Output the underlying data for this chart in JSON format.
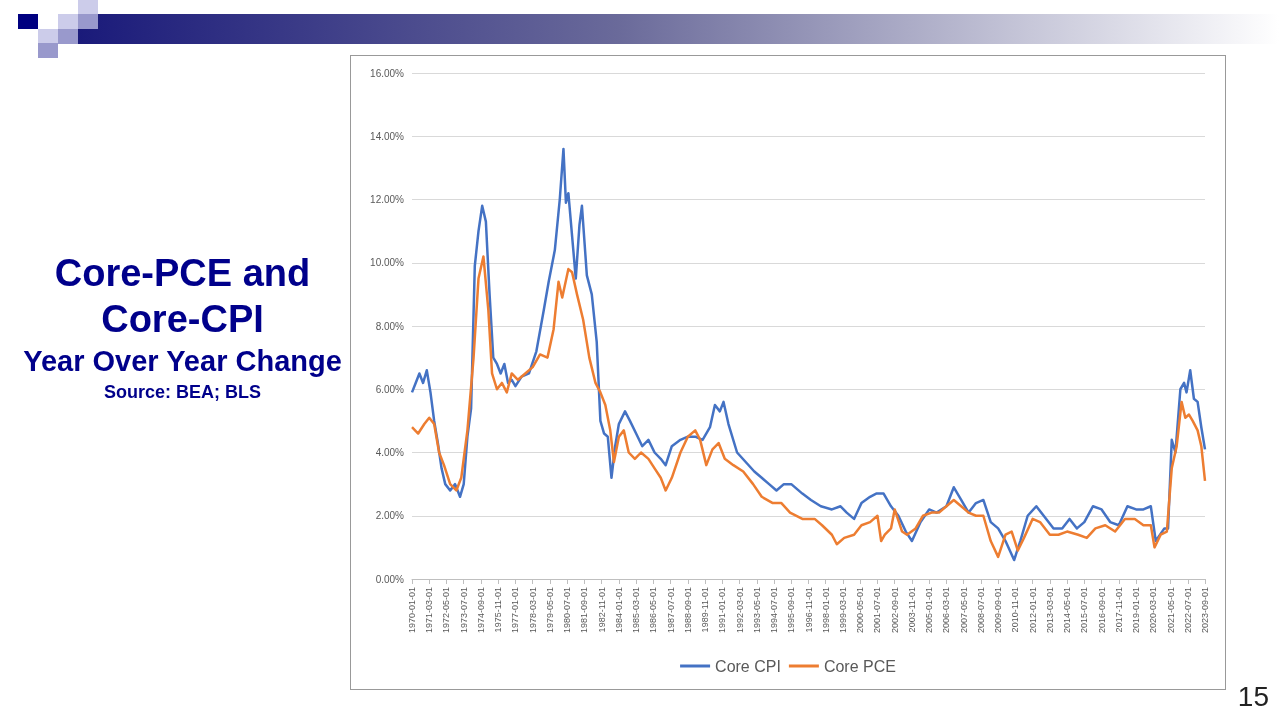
{
  "chart_data": {
    "type": "line",
    "title": "Core-PCE and Core-CPI",
    "subtitle": "Year Over Year Change",
    "annotations": [
      "Source: BEA; BLS",
      "15"
    ],
    "xlim": [
      "1970-01",
      "2023-09"
    ],
    "xticks": [
      "1970-01-01",
      "1971-03-01",
      "1972-05-01",
      "1973-07-01",
      "1974-09-01",
      "1975-11-01",
      "1977-01-01",
      "1978-03-01",
      "1979-05-01",
      "1980-07-01",
      "1981-09-01",
      "1982-11-01",
      "1984-01-01",
      "1985-03-01",
      "1986-05-01",
      "1987-07-01",
      "1988-09-01",
      "1989-11-01",
      "1991-01-01",
      "1992-03-01",
      "1993-05-01",
      "1994-07-01",
      "1995-09-01",
      "1996-11-01",
      "1998-01-01",
      "1999-03-01",
      "2000-05-01",
      "2001-07-01",
      "2002-09-01",
      "2003-11-01",
      "2005-01-01",
      "2006-03-01",
      "2007-05-01",
      "2008-07-01",
      "2009-09-01",
      "2010-11-01",
      "2012-01-01",
      "2013-03-01",
      "2014-05-01",
      "2015-07-01",
      "2016-09-01",
      "2017-11-01",
      "2019-01-01",
      "2020-03-01",
      "2021-05-01",
      "2022-07-01",
      "2023-09-01"
    ],
    "ylim": [
      0,
      16
    ],
    "yticks": [
      {
        "value": 0,
        "label": "0.00%"
      },
      {
        "value": 2,
        "label": "2.00%"
      },
      {
        "value": 4,
        "label": "4.00%"
      },
      {
        "value": 6,
        "label": "6.00%"
      },
      {
        "value": 8,
        "label": "8.00%"
      },
      {
        "value": 10,
        "label": "10.00%"
      },
      {
        "value": 12,
        "label": "12.00%"
      },
      {
        "value": 14,
        "label": "14.00%"
      },
      {
        "value": 16,
        "label": "16.00%"
      }
    ],
    "grid": "y",
    "legend": "bottom",
    "marker": "none",
    "line_style": "solid",
    "series": [
      {
        "name": "Core CPI",
        "color": "#4472c4",
        "x": [
          "1970-01",
          "1970-04",
          "1970-07",
          "1970-10",
          "1971-01",
          "1971-04",
          "1971-07",
          "1971-10",
          "1972-01",
          "1972-04",
          "1972-08",
          "1972-12",
          "1973-04",
          "1973-07",
          "1973-10",
          "1974-01",
          "1974-04",
          "1974-07",
          "1974-10",
          "1975-01",
          "1975-04",
          "1975-07",
          "1975-10",
          "1976-01",
          "1976-04",
          "1976-07",
          "1976-10",
          "1977-01",
          "1977-06",
          "1977-12",
          "1978-06",
          "1978-12",
          "1979-04",
          "1979-09",
          "1980-01",
          "1980-04",
          "1980-06",
          "1980-08",
          "1980-12",
          "1981-02",
          "1981-05",
          "1981-07",
          "1981-11",
          "1982-03",
          "1982-07",
          "1982-10",
          "1983-01",
          "1983-04",
          "1983-07",
          "1983-10",
          "1984-01",
          "1984-06",
          "1984-10",
          "1985-03",
          "1985-08",
          "1986-01",
          "1986-06",
          "1986-11",
          "1987-03",
          "1987-08",
          "1988-03",
          "1988-09",
          "1989-03",
          "1989-09",
          "1990-03",
          "1990-07",
          "1990-11",
          "1991-02",
          "1991-06",
          "1992-01",
          "1992-08",
          "1993-03",
          "1993-09",
          "1994-03",
          "1994-09",
          "1995-03",
          "1995-09",
          "1996-06",
          "1997-01",
          "1997-09",
          "1998-06",
          "1999-01",
          "1999-06",
          "1999-12",
          "2000-06",
          "2001-01",
          "2001-06",
          "2001-12",
          "2002-06",
          "2002-12",
          "2003-06",
          "2003-11",
          "2004-06",
          "2005-01",
          "2005-07",
          "2006-03",
          "2006-09",
          "2007-03",
          "2007-09",
          "2008-03",
          "2008-09",
          "2009-03",
          "2009-09",
          "2010-03",
          "2010-10",
          "2011-03",
          "2011-09",
          "2012-04",
          "2012-10",
          "2013-06",
          "2014-01",
          "2014-07",
          "2015-01",
          "2015-07",
          "2016-02",
          "2016-09",
          "2017-04",
          "2017-11",
          "2018-06",
          "2019-01",
          "2019-07",
          "2020-01",
          "2020-05",
          "2020-12",
          "2021-03",
          "2021-06",
          "2021-09",
          "2022-01",
          "2022-04",
          "2022-06",
          "2022-09",
          "2022-12",
          "2023-03",
          "2023-06",
          "2023-09"
        ],
        "values": [
          5.9,
          6.2,
          6.5,
          6.2,
          6.6,
          5.9,
          5.0,
          4.3,
          3.5,
          3.0,
          2.8,
          3.0,
          2.6,
          3.0,
          4.5,
          5.4,
          9.9,
          11.0,
          11.8,
          11.3,
          9.0,
          7.0,
          6.8,
          6.5,
          6.8,
          6.2,
          6.3,
          6.1,
          6.4,
          6.5,
          7.2,
          8.5,
          9.4,
          10.4,
          12.0,
          13.6,
          11.9,
          12.2,
          10.4,
          9.5,
          11.2,
          11.8,
          9.6,
          9.0,
          7.5,
          5.0,
          4.6,
          4.5,
          3.2,
          4.2,
          4.9,
          5.3,
          5.0,
          4.6,
          4.2,
          4.4,
          4.0,
          3.8,
          3.6,
          4.2,
          4.4,
          4.5,
          4.5,
          4.4,
          4.8,
          5.5,
          5.3,
          5.6,
          4.9,
          4.0,
          3.7,
          3.4,
          3.2,
          3.0,
          2.8,
          3.0,
          3.0,
          2.7,
          2.5,
          2.3,
          2.2,
          2.3,
          2.1,
          1.9,
          2.4,
          2.6,
          2.7,
          2.7,
          2.3,
          2.0,
          1.5,
          1.2,
          1.8,
          2.2,
          2.1,
          2.3,
          2.9,
          2.5,
          2.1,
          2.4,
          2.5,
          1.8,
          1.6,
          1.2,
          0.6,
          1.2,
          2.0,
          2.3,
          2.0,
          1.6,
          1.6,
          1.9,
          1.6,
          1.8,
          2.3,
          2.2,
          1.8,
          1.7,
          2.3,
          2.2,
          2.2,
          2.3,
          1.2,
          1.6,
          1.6,
          4.4,
          4.0,
          6.0,
          6.2,
          5.9,
          6.6,
          5.7,
          5.6,
          4.8,
          4.1
        ]
      },
      {
        "name": "Core PCE",
        "color": "#ed7d31",
        "x": [
          "1970-01",
          "1970-06",
          "1970-11",
          "1971-03",
          "1971-07",
          "1971-11",
          "1972-03",
          "1972-08",
          "1973-01",
          "1973-05",
          "1973-10",
          "1974-03",
          "1974-07",
          "1974-11",
          "1975-03",
          "1975-06",
          "1975-10",
          "1976-02",
          "1976-06",
          "1976-10",
          "1977-03",
          "1977-09",
          "1978-03",
          "1978-09",
          "1979-03",
          "1979-08",
          "1979-12",
          "1980-03",
          "1980-08",
          "1980-11",
          "1981-03",
          "1981-08",
          "1982-01",
          "1982-06",
          "1982-10",
          "1983-02",
          "1983-06",
          "1983-09",
          "1984-01",
          "1984-05",
          "1984-09",
          "1985-02",
          "1985-07",
          "1986-01",
          "1986-06",
          "1986-11",
          "1987-03",
          "1987-08",
          "1988-03",
          "1988-09",
          "1989-03",
          "1989-07",
          "1989-12",
          "1990-05",
          "1990-10",
          "1991-03",
          "1991-10",
          "1992-06",
          "1993-02",
          "1993-09",
          "1994-06",
          "1995-01",
          "1995-08",
          "1996-06",
          "1997-04",
          "1997-10",
          "1998-06",
          "1998-10",
          "1999-04",
          "1999-12",
          "2000-06",
          "2001-01",
          "2001-07",
          "2001-10",
          "2002-01",
          "2002-06",
          "2002-09",
          "2003-03",
          "2003-07",
          "2004-02",
          "2004-08",
          "2005-03",
          "2005-09",
          "2006-03",
          "2006-09",
          "2007-03",
          "2007-09",
          "2008-03",
          "2008-09",
          "2009-03",
          "2009-09",
          "2010-03",
          "2010-08",
          "2011-01",
          "2011-06",
          "2012-01",
          "2012-07",
          "2013-03",
          "2013-10",
          "2014-05",
          "2015-02",
          "2015-09",
          "2016-04",
          "2016-12",
          "2017-08",
          "2018-04",
          "2018-12",
          "2019-07",
          "2020-01",
          "2020-04",
          "2020-09",
          "2021-02",
          "2021-06",
          "2021-10",
          "2022-02",
          "2022-05",
          "2022-08",
          "2022-11",
          "2023-03",
          "2023-06",
          "2023-09"
        ],
        "values": [
          4.8,
          4.6,
          4.9,
          5.1,
          4.9,
          4.0,
          3.6,
          3.0,
          2.8,
          3.2,
          4.7,
          7.0,
          9.5,
          10.2,
          8.5,
          6.5,
          6.0,
          6.2,
          5.9,
          6.5,
          6.3,
          6.5,
          6.7,
          7.1,
          7.0,
          7.9,
          9.4,
          8.9,
          9.8,
          9.7,
          9.0,
          8.2,
          7.0,
          6.2,
          5.9,
          5.5,
          4.7,
          3.7,
          4.5,
          4.7,
          4.0,
          3.8,
          4.0,
          3.8,
          3.5,
          3.2,
          2.8,
          3.2,
          4.0,
          4.5,
          4.7,
          4.4,
          3.6,
          4.1,
          4.3,
          3.8,
          3.6,
          3.4,
          3.0,
          2.6,
          2.4,
          2.4,
          2.1,
          1.9,
          1.9,
          1.7,
          1.4,
          1.1,
          1.3,
          1.4,
          1.7,
          1.8,
          2.0,
          1.2,
          1.4,
          1.6,
          2.2,
          1.5,
          1.4,
          1.6,
          2.0,
          2.1,
          2.1,
          2.3,
          2.5,
          2.3,
          2.1,
          2.0,
          2.0,
          1.2,
          0.7,
          1.4,
          1.5,
          0.9,
          1.3,
          1.9,
          1.8,
          1.4,
          1.4,
          1.5,
          1.4,
          1.3,
          1.6,
          1.7,
          1.5,
          1.9,
          1.9,
          1.7,
          1.7,
          1.0,
          1.4,
          1.5,
          3.5,
          4.2,
          5.6,
          5.1,
          5.2,
          5.0,
          4.7,
          4.2,
          3.1
        ]
      }
    ]
  }
}
